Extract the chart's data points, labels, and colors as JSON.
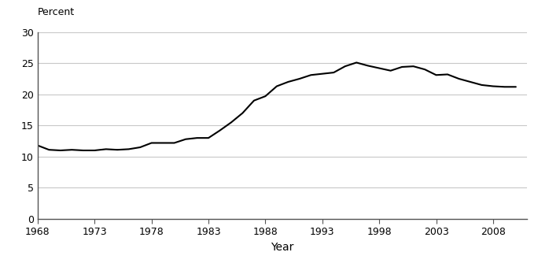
{
  "title": "",
  "xlabel": "Year",
  "ylabel": "Percent",
  "xlim": [
    1968,
    2011
  ],
  "ylim": [
    0,
    30
  ],
  "yticks": [
    0,
    5,
    10,
    15,
    20,
    25,
    30
  ],
  "xticks": [
    1968,
    1973,
    1978,
    1983,
    1988,
    1993,
    1998,
    2003,
    2008
  ],
  "line_color": "#000000",
  "line_width": 1.5,
  "background_color": "#ffffff",
  "grid_color": "#c8c8c8",
  "years": [
    1968,
    1969,
    1970,
    1971,
    1972,
    1973,
    1974,
    1975,
    1976,
    1977,
    1978,
    1979,
    1980,
    1981,
    1982,
    1983,
    1984,
    1985,
    1986,
    1987,
    1988,
    1989,
    1990,
    1991,
    1992,
    1993,
    1994,
    1995,
    1996,
    1997,
    1998,
    1999,
    2000,
    2001,
    2002,
    2003,
    2004,
    2005,
    2006,
    2007,
    2008,
    2009,
    2010
  ],
  "values": [
    11.8,
    11.1,
    11.0,
    11.1,
    11.0,
    11.0,
    11.2,
    11.1,
    11.2,
    11.5,
    12.2,
    12.2,
    12.2,
    12.8,
    13.0,
    13.0,
    14.2,
    15.5,
    17.0,
    19.0,
    19.7,
    21.3,
    22.0,
    22.5,
    23.1,
    23.3,
    23.5,
    24.5,
    25.1,
    24.6,
    24.2,
    23.8,
    24.4,
    24.5,
    24.0,
    23.1,
    23.2,
    22.5,
    22.0,
    21.5,
    21.3,
    21.2,
    21.2
  ]
}
